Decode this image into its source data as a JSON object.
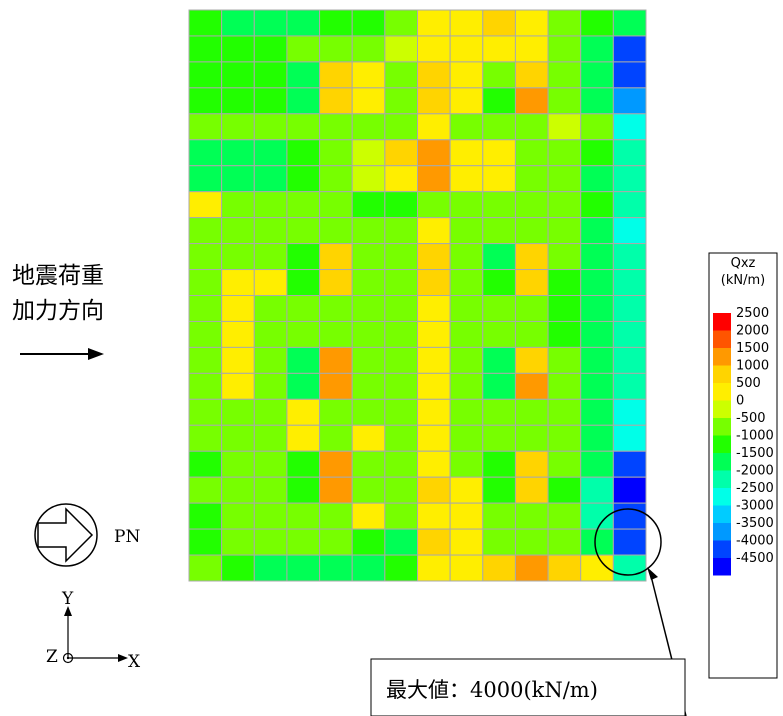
{
  "chart_data": {
    "type": "heatmap",
    "legend": {
      "title_line1": "Qxz",
      "title_line2": "(kN/m)",
      "ticks": [
        "2500",
        "2000",
        "1500",
        "1000",
        "500",
        "0",
        "-500",
        "-1000",
        "-1500",
        "-2000",
        "-2500",
        "-3000",
        "-3500",
        "-4000",
        "-4500"
      ],
      "colors": [
        "#ff0000",
        "#ff5500",
        "#ff9900",
        "#ffd400",
        "#ffee00",
        "#ccff00",
        "#77ff00",
        "#22ff00",
        "#00ff55",
        "#00ffaa",
        "#00ffe8",
        "#00ccff",
        "#0099ff",
        "#0044ff",
        "#0000ff"
      ]
    },
    "grid": [
      [
        7,
        8,
        8,
        8,
        7,
        7,
        6,
        4,
        4,
        3,
        4,
        6,
        7,
        8
      ],
      [
        7,
        7,
        7,
        6,
        6,
        6,
        5,
        4,
        4,
        4,
        4,
        6,
        8,
        13
      ],
      [
        7,
        7,
        7,
        8,
        3,
        4,
        6,
        3,
        4,
        6,
        3,
        6,
        8,
        13
      ],
      [
        7,
        7,
        7,
        8,
        3,
        4,
        6,
        3,
        4,
        7,
        2,
        6,
        8,
        12
      ],
      [
        6,
        6,
        6,
        6,
        6,
        6,
        6,
        4,
        6,
        6,
        6,
        5,
        6,
        10
      ],
      [
        8,
        8,
        8,
        7,
        6,
        5,
        3,
        2,
        4,
        4,
        6,
        6,
        7,
        9
      ],
      [
        8,
        8,
        8,
        7,
        6,
        5,
        4,
        2,
        4,
        4,
        6,
        6,
        8,
        9
      ],
      [
        4,
        6,
        6,
        6,
        6,
        7,
        7,
        6,
        6,
        6,
        6,
        6,
        7,
        9
      ],
      [
        6,
        6,
        6,
        6,
        6,
        6,
        6,
        4,
        6,
        6,
        6,
        6,
        8,
        10
      ],
      [
        6,
        6,
        6,
        7,
        3,
        6,
        6,
        3,
        6,
        8,
        3,
        6,
        8,
        9
      ],
      [
        6,
        4,
        4,
        7,
        3,
        6,
        6,
        3,
        6,
        7,
        3,
        7,
        8,
        9
      ],
      [
        6,
        4,
        6,
        6,
        6,
        6,
        6,
        4,
        6,
        6,
        6,
        7,
        8,
        9
      ],
      [
        6,
        4,
        6,
        6,
        6,
        6,
        6,
        4,
        6,
        6,
        6,
        7,
        8,
        9
      ],
      [
        6,
        4,
        6,
        8,
        2,
        6,
        6,
        4,
        6,
        8,
        3,
        6,
        8,
        9
      ],
      [
        6,
        4,
        6,
        8,
        2,
        6,
        6,
        4,
        6,
        8,
        2,
        6,
        8,
        9
      ],
      [
        6,
        6,
        6,
        4,
        6,
        6,
        6,
        4,
        6,
        6,
        6,
        6,
        8,
        10
      ],
      [
        6,
        6,
        6,
        4,
        6,
        4,
        6,
        4,
        6,
        6,
        6,
        6,
        8,
        10
      ],
      [
        7,
        6,
        6,
        7,
        2,
        6,
        6,
        4,
        6,
        7,
        3,
        6,
        8,
        13
      ],
      [
        6,
        6,
        6,
        7,
        2,
        6,
        6,
        3,
        4,
        7,
        3,
        7,
        9,
        14
      ],
      [
        7,
        6,
        6,
        6,
        6,
        4,
        6,
        4,
        4,
        6,
        6,
        6,
        9,
        13
      ],
      [
        7,
        6,
        6,
        6,
        6,
        7,
        8,
        3,
        4,
        6,
        6,
        6,
        8,
        13
      ],
      [
        6,
        7,
        8,
        8,
        8,
        8,
        7,
        4,
        4,
        3,
        2,
        3,
        4,
        9
      ]
    ]
  },
  "labels": {
    "load_line1": "地震荷重",
    "load_line2": "加力方向",
    "pn": "PN",
    "axis_y": "Y",
    "axis_z": "Z",
    "axis_x": "X",
    "max_annotation": "最大値：4000(kN/m)"
  }
}
